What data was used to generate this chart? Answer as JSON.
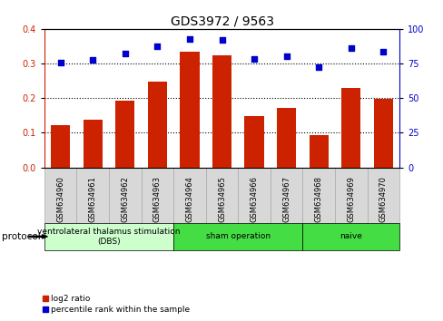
{
  "title": "GDS3972 / 9563",
  "samples": [
    "GSM634960",
    "GSM634961",
    "GSM634962",
    "GSM634963",
    "GSM634964",
    "GSM634965",
    "GSM634966",
    "GSM634967",
    "GSM634968",
    "GSM634969",
    "GSM634970"
  ],
  "log2_ratio": [
    0.123,
    0.138,
    0.193,
    0.248,
    0.334,
    0.323,
    0.149,
    0.172,
    0.093,
    0.23,
    0.198
  ],
  "percentile_rank": [
    75.5,
    77.5,
    82.5,
    87.5,
    92.5,
    92.0,
    78.0,
    80.5,
    72.5,
    86.0,
    83.5
  ],
  "bar_color": "#cc2200",
  "dot_color": "#0000cc",
  "left_ylim": [
    0,
    0.4
  ],
  "right_ylim": [
    0,
    100
  ],
  "left_yticks": [
    0,
    0.1,
    0.2,
    0.3,
    0.4
  ],
  "right_yticks": [
    0,
    25,
    50,
    75,
    100
  ],
  "groups": [
    {
      "label": "ventrolateral thalamus stimulation\n(DBS)",
      "start": 0,
      "end": 3,
      "color": "#ccffcc"
    },
    {
      "label": "sham operation",
      "start": 4,
      "end": 7,
      "color": "#44dd44"
    },
    {
      "label": "naive",
      "start": 8,
      "end": 10,
      "color": "#44dd44"
    }
  ],
  "sample_box_color": "#d8d8d8",
  "sample_box_edge": "#aaaaaa",
  "protocol_label": "protocol",
  "legend_bar_label": "log2 ratio",
  "legend_dot_label": "percentile rank within the sample",
  "title_fontsize": 10,
  "tick_fontsize": 7,
  "sample_fontsize": 6
}
